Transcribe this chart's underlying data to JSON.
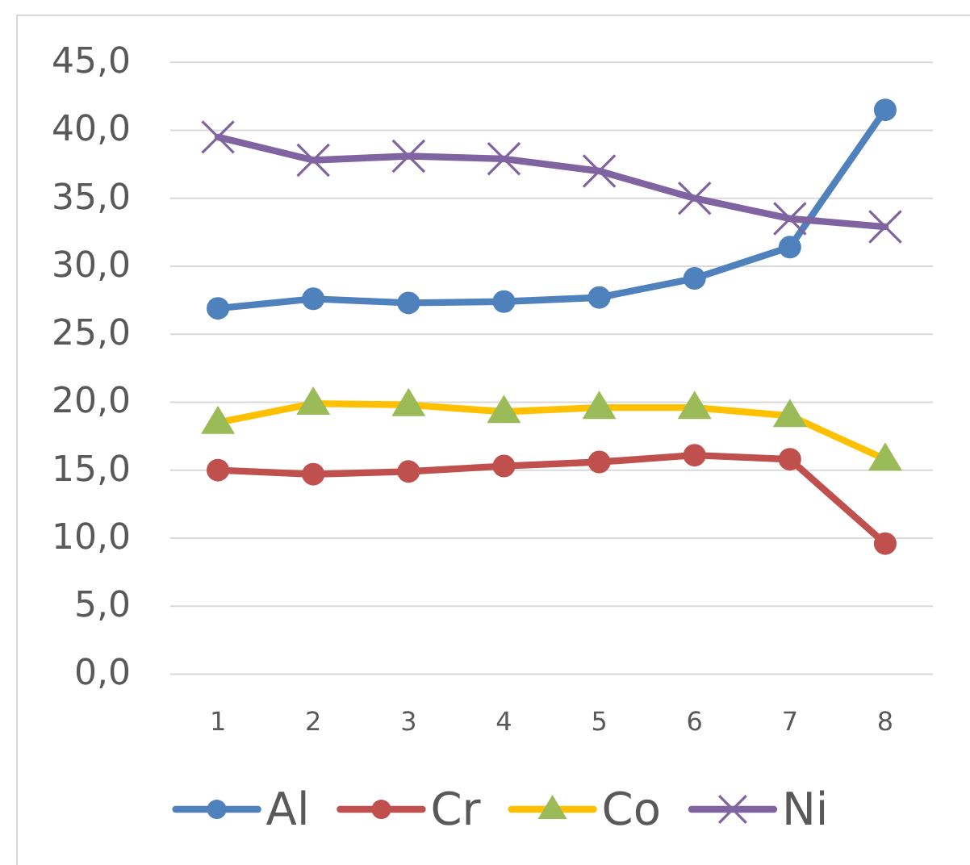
{
  "chart_data": {
    "type": "line",
    "categories": [
      "1",
      "2",
      "3",
      "4",
      "5",
      "6",
      "7",
      "8"
    ],
    "ylim": [
      0,
      45
    ],
    "yticks": [
      {
        "value": 0,
        "label": "0,0"
      },
      {
        "value": 5,
        "label": "5,0"
      },
      {
        "value": 10,
        "label": "10,0"
      },
      {
        "value": 15,
        "label": "15,0"
      },
      {
        "value": 20,
        "label": "20,0"
      },
      {
        "value": 25,
        "label": "25,0"
      },
      {
        "value": 30,
        "label": "30,0"
      },
      {
        "value": 35,
        "label": "35,0"
      },
      {
        "value": 40,
        "label": "40,0"
      },
      {
        "value": 45,
        "label": "45,0"
      }
    ],
    "grid": "y",
    "legend": "bottom",
    "series": [
      {
        "name": "Al",
        "color": "#4f81bd",
        "marker": "circle",
        "values": [
          26.9,
          27.6,
          27.3,
          27.4,
          27.7,
          29.1,
          31.4,
          41.5
        ]
      },
      {
        "name": "Cr",
        "color": "#c0504d",
        "marker": "circle",
        "values": [
          15.0,
          14.7,
          14.9,
          15.3,
          15.6,
          16.1,
          15.8,
          9.6
        ]
      },
      {
        "name": "Co",
        "color": "#ffc000",
        "colors": [
          "#9bbb59",
          "#9bbb59",
          "#9bbb59",
          "#9bbb59",
          "#9bbb59",
          "#9bbb59",
          "#9bbb59",
          "#9bbb59"
        ],
        "marker": "triangle",
        "values": [
          18.5,
          19.9,
          19.8,
          19.3,
          19.6,
          19.6,
          19.0,
          15.8
        ]
      },
      {
        "name": "Ni",
        "color": "#8064a2",
        "marker": "cross",
        "values": [
          39.5,
          37.8,
          38.1,
          37.9,
          37.0,
          35.0,
          33.5,
          32.9
        ]
      }
    ]
  }
}
